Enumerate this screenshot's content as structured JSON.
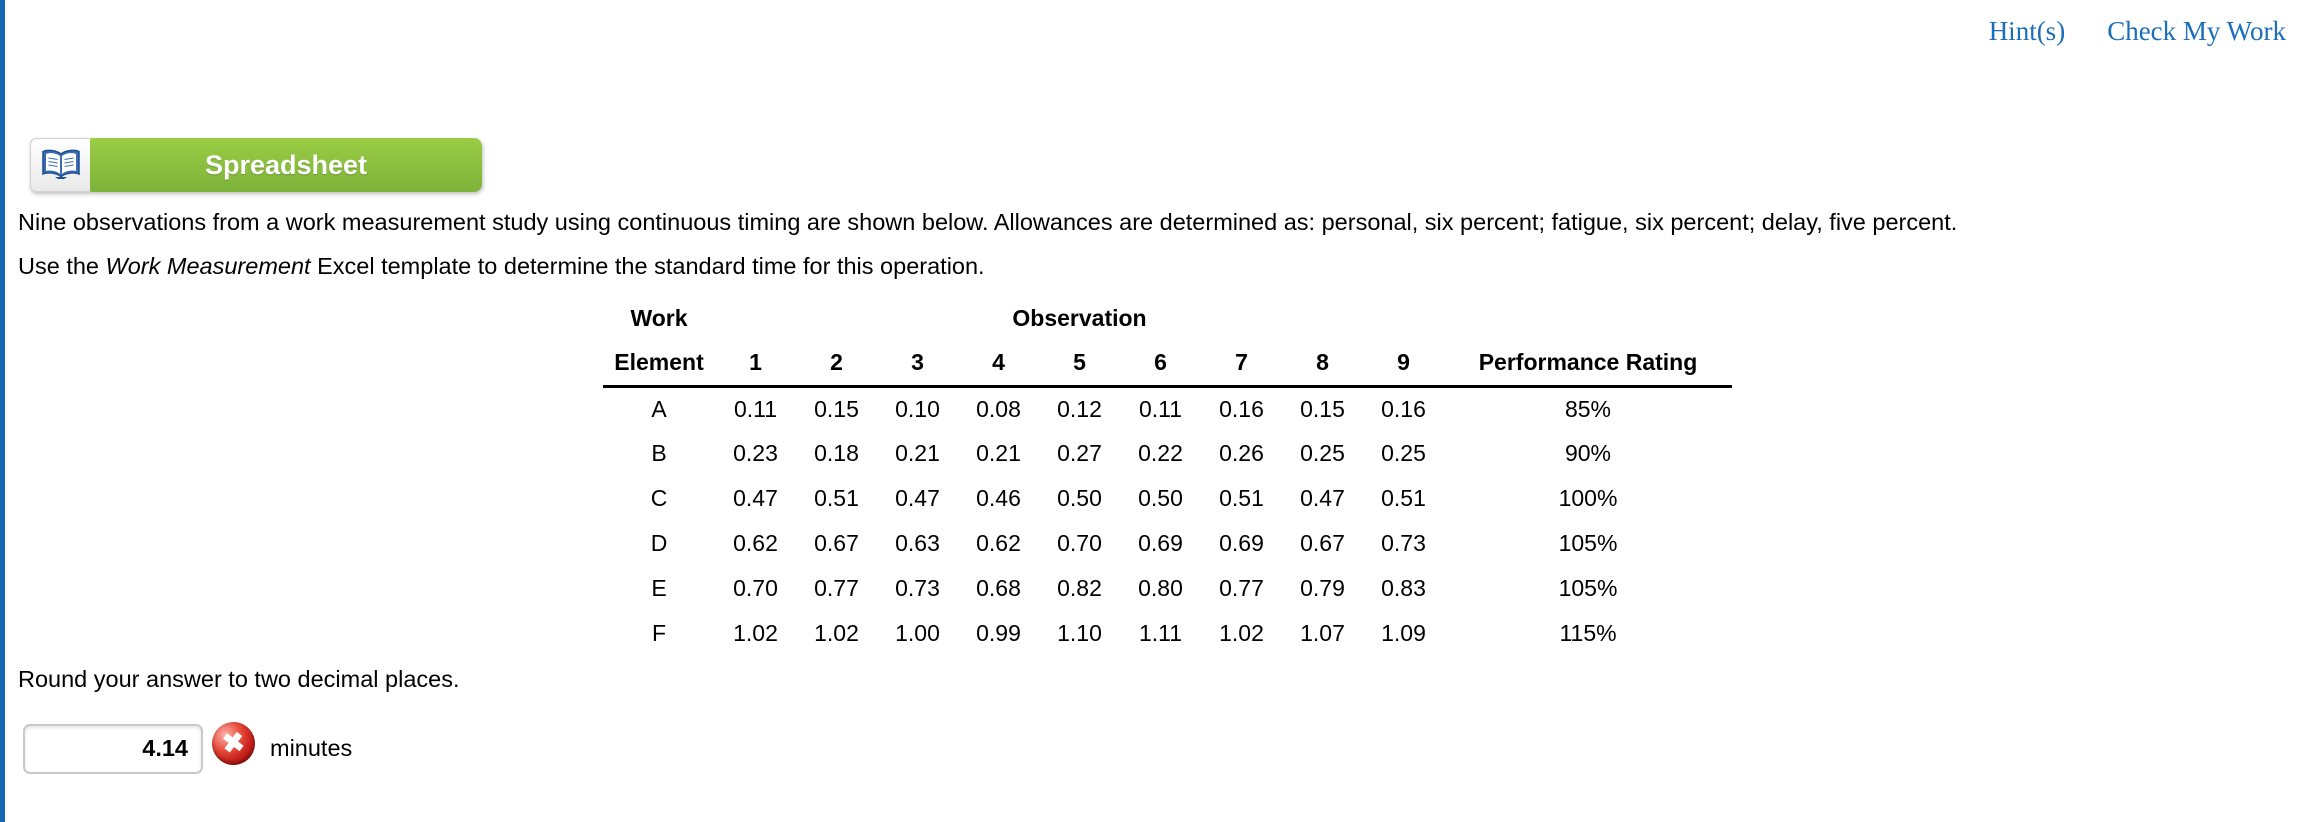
{
  "links": {
    "hints": "Hint(s)",
    "check_my_work": "Check My Work"
  },
  "toolbar": {
    "spreadsheet_label": "Spreadsheet"
  },
  "problem": {
    "line1": "Nine observations from a work measurement study using continuous timing are shown below. Allowances are determined as: personal, six percent; fatigue, six percent; delay, five percent.",
    "line2_prefix": "Use the ",
    "line2_template_name": "Work Measurement",
    "line2_suffix": " Excel template to determine the standard time for this operation.",
    "round_note": "Round your answer to two decimal places."
  },
  "table": {
    "headers": {
      "work": "Work",
      "element": "Element",
      "observation": "Observation",
      "observation_numbers": [
        "1",
        "2",
        "3",
        "4",
        "5",
        "6",
        "7",
        "8",
        "9"
      ],
      "performance_rating": "Performance Rating"
    },
    "rows": [
      {
        "element": "A",
        "observations": [
          "0.11",
          "0.15",
          "0.10",
          "0.08",
          "0.12",
          "0.11",
          "0.16",
          "0.15",
          "0.16"
        ],
        "performance_rating": "85%"
      },
      {
        "element": "B",
        "observations": [
          "0.23",
          "0.18",
          "0.21",
          "0.21",
          "0.27",
          "0.22",
          "0.26",
          "0.25",
          "0.25"
        ],
        "performance_rating": "90%"
      },
      {
        "element": "C",
        "observations": [
          "0.47",
          "0.51",
          "0.47",
          "0.46",
          "0.50",
          "0.50",
          "0.51",
          "0.47",
          "0.51"
        ],
        "performance_rating": "100%"
      },
      {
        "element": "D",
        "observations": [
          "0.62",
          "0.67",
          "0.63",
          "0.62",
          "0.70",
          "0.69",
          "0.69",
          "0.67",
          "0.73"
        ],
        "performance_rating": "105%"
      },
      {
        "element": "E",
        "observations": [
          "0.70",
          "0.77",
          "0.73",
          "0.68",
          "0.82",
          "0.80",
          "0.77",
          "0.79",
          "0.83"
        ],
        "performance_rating": "105%"
      },
      {
        "element": "F",
        "observations": [
          "1.02",
          "1.02",
          "1.00",
          "0.99",
          "1.10",
          "1.11",
          "1.02",
          "1.07",
          "1.09"
        ],
        "performance_rating": "115%"
      }
    ]
  },
  "answer": {
    "value": "4.14",
    "unit": "minutes",
    "status": "incorrect",
    "status_icon": "error-x-icon"
  },
  "colors": {
    "link_blue": "#1b6fba",
    "button_green": "#8dc63f",
    "left_border_blue": "#1567b3",
    "error_red": "#c41e1a"
  }
}
